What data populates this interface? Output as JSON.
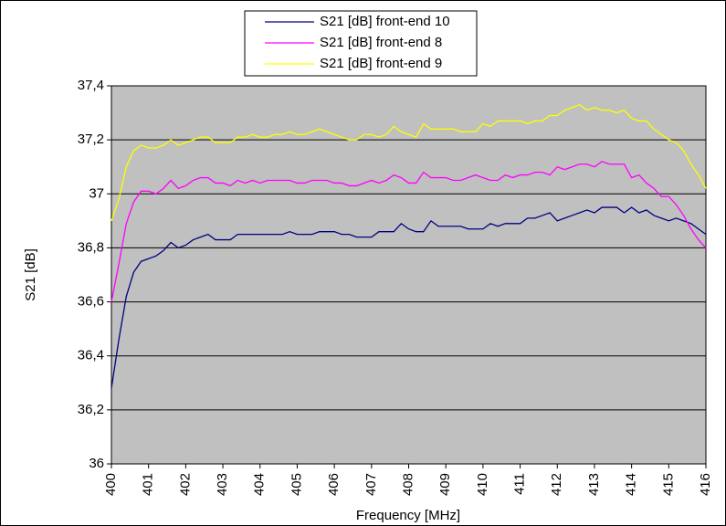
{
  "chart_data": {
    "type": "line",
    "xlabel": "Frequency [MHz]",
    "ylabel": "S21 [dB]",
    "x": [
      400,
      400.2,
      400.4,
      400.6,
      400.8,
      401,
      401.2,
      401.4,
      401.6,
      401.8,
      402,
      402.2,
      402.4,
      402.6,
      402.8,
      403,
      403.2,
      403.4,
      403.6,
      403.8,
      404,
      404.2,
      404.4,
      404.6,
      404.8,
      405,
      405.2,
      405.4,
      405.6,
      405.8,
      406,
      406.2,
      406.4,
      406.6,
      406.8,
      407,
      407.2,
      407.4,
      407.6,
      407.8,
      408,
      408.2,
      408.4,
      408.6,
      408.8,
      409,
      409.2,
      409.4,
      409.6,
      409.8,
      410,
      410.2,
      410.4,
      410.6,
      410.8,
      411,
      411.2,
      411.4,
      411.6,
      411.8,
      412,
      412.2,
      412.4,
      412.6,
      412.8,
      413,
      413.2,
      413.4,
      413.6,
      413.8,
      414,
      414.2,
      414.4,
      414.6,
      414.8,
      415,
      415.2,
      415.4,
      415.6,
      415.8,
      416
    ],
    "series": [
      {
        "name": "S21 [dB] front-end 10",
        "color": "#000080",
        "values": [
          36.28,
          36.46,
          36.62,
          36.71,
          36.75,
          36.76,
          36.77,
          36.79,
          36.82,
          36.8,
          36.81,
          36.83,
          36.84,
          36.85,
          36.83,
          36.83,
          36.83,
          36.85,
          36.85,
          36.85,
          36.85,
          36.85,
          36.85,
          36.85,
          36.86,
          36.85,
          36.85,
          36.85,
          36.86,
          36.86,
          36.86,
          36.85,
          36.85,
          36.84,
          36.84,
          36.84,
          36.86,
          36.86,
          36.86,
          36.89,
          36.87,
          36.86,
          36.86,
          36.9,
          36.88,
          36.88,
          36.88,
          36.88,
          36.87,
          36.87,
          36.87,
          36.89,
          36.88,
          36.89,
          36.89,
          36.89,
          36.91,
          36.91,
          36.92,
          36.93,
          36.9,
          36.91,
          36.92,
          36.93,
          36.94,
          36.93,
          36.95,
          36.95,
          36.95,
          36.93,
          36.95,
          36.93,
          36.94,
          36.92,
          36.91,
          36.9,
          36.91,
          36.9,
          36.89,
          36.87,
          36.85
        ]
      },
      {
        "name": "S21 [dB] front-end 8",
        "color": "#ff00ff",
        "values": [
          36.6,
          36.74,
          36.89,
          36.97,
          37.01,
          37.01,
          37.0,
          37.02,
          37.05,
          37.02,
          37.03,
          37.05,
          37.06,
          37.06,
          37.04,
          37.04,
          37.03,
          37.05,
          37.04,
          37.05,
          37.04,
          37.05,
          37.05,
          37.05,
          37.05,
          37.04,
          37.04,
          37.05,
          37.05,
          37.05,
          37.04,
          37.04,
          37.03,
          37.03,
          37.04,
          37.05,
          37.04,
          37.05,
          37.07,
          37.06,
          37.04,
          37.04,
          37.08,
          37.06,
          37.06,
          37.06,
          37.05,
          37.05,
          37.06,
          37.07,
          37.06,
          37.05,
          37.05,
          37.07,
          37.06,
          37.07,
          37.07,
          37.08,
          37.08,
          37.07,
          37.1,
          37.09,
          37.1,
          37.11,
          37.11,
          37.1,
          37.12,
          37.11,
          37.11,
          37.11,
          37.06,
          37.07,
          37.04,
          37.02,
          36.99,
          36.99,
          36.96,
          36.92,
          36.87,
          36.83,
          36.8
        ]
      },
      {
        "name": "S21 [dB] front-end 9",
        "color": "#ffff00",
        "values": [
          36.9,
          36.98,
          37.1,
          37.16,
          37.18,
          37.17,
          37.17,
          37.18,
          37.2,
          37.18,
          37.19,
          37.2,
          37.21,
          37.21,
          37.19,
          37.19,
          37.19,
          37.21,
          37.21,
          37.22,
          37.21,
          37.21,
          37.22,
          37.22,
          37.23,
          37.22,
          37.22,
          37.23,
          37.24,
          37.23,
          37.22,
          37.21,
          37.2,
          37.2,
          37.22,
          37.22,
          37.21,
          37.22,
          37.25,
          37.23,
          37.22,
          37.21,
          37.26,
          37.24,
          37.24,
          37.24,
          37.24,
          37.23,
          37.23,
          37.23,
          37.26,
          37.25,
          37.27,
          37.27,
          37.27,
          37.27,
          37.26,
          37.27,
          37.27,
          37.29,
          37.29,
          37.31,
          37.32,
          37.33,
          37.31,
          37.32,
          37.31,
          37.31,
          37.3,
          37.31,
          37.28,
          37.27,
          37.27,
          37.24,
          37.22,
          37.2,
          37.19,
          37.16,
          37.11,
          37.07,
          37.02
        ]
      }
    ],
    "xlim": [
      400,
      416
    ],
    "xticks": [
      400,
      401,
      402,
      403,
      404,
      405,
      406,
      407,
      408,
      409,
      410,
      411,
      412,
      413,
      414,
      415,
      416
    ],
    "ylim": [
      36,
      37.4
    ],
    "yticks": [
      36,
      {
        "value": 36.2,
        "label": "36,2"
      },
      {
        "value": 36.4,
        "label": "36,4"
      },
      {
        "value": 36.6,
        "label": "36,6"
      },
      {
        "value": 36.8,
        "label": "36,8"
      },
      37,
      {
        "value": 37.2,
        "label": "37,2"
      },
      {
        "value": 37.4,
        "label": "37,4"
      }
    ],
    "grid": true,
    "legend": "top"
  }
}
